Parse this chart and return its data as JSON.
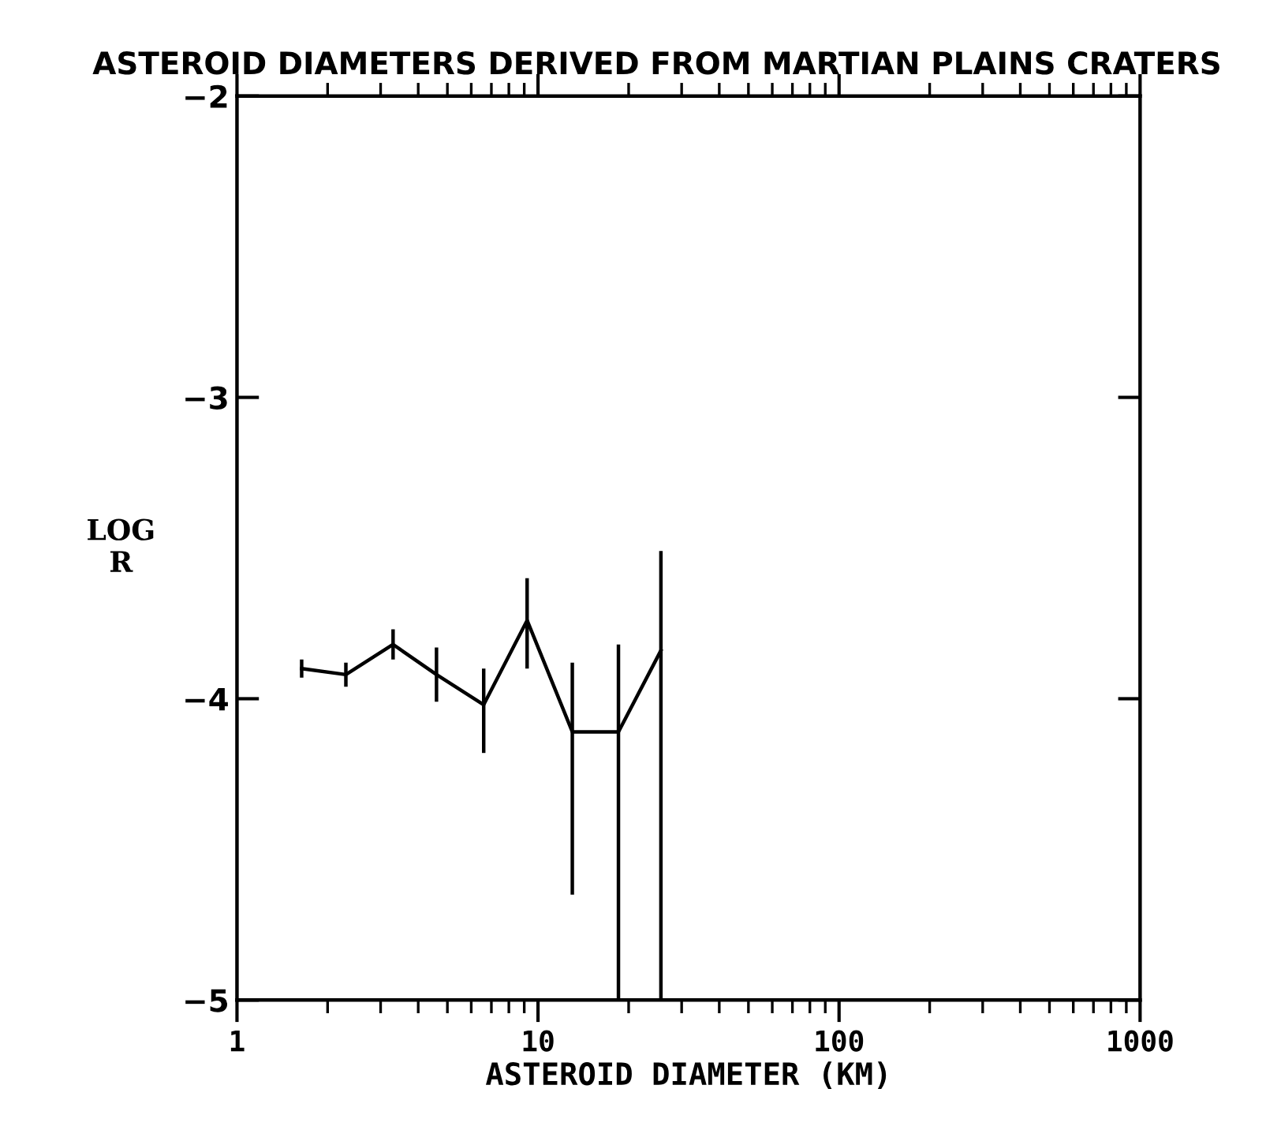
{
  "chart_data": {
    "type": "line",
    "title": "ASTEROID DIAMETERS DERIVED FROM MARTIAN PLAINS CRATERS",
    "xlabel": "ASTEROID DIAMETER (KM)",
    "ylabel": "LOG\nR",
    "x": [
      1.64,
      2.3,
      3.3,
      4.6,
      6.6,
      9.2,
      13,
      18.5,
      25.6
    ],
    "series": [
      {
        "color": "#000000",
        "values": [
          -3.9,
          -3.92,
          -3.82,
          -3.92,
          -4.02,
          -3.74,
          -4.11,
          -4.11,
          -3.84
        ],
        "errors": [
          0.03,
          0.04,
          0.05,
          0.09,
          [
            -4.18,
            -3.9
          ],
          [
            -3.9,
            -3.6
          ],
          [
            -4.65,
            -3.88
          ],
          [
            -5,
            -3.82
          ],
          [
            -5,
            -3.51
          ]
        ]
      }
    ],
    "log": "x",
    "xlim": [
      1,
      1000
    ],
    "xticks": [
      1,
      10,
      100,
      1000
    ],
    "ylim": [
      -5,
      -2
    ],
    "yticks": [
      {
        "value": -5,
        "label": "−5"
      },
      {
        "value": -4,
        "label": "−4"
      },
      {
        "value": -3,
        "label": "−3"
      },
      {
        "value": -2,
        "label": "−2"
      }
    ],
    "grid": false,
    "legend": false,
    "marker": "none",
    "line_style": "solid"
  }
}
